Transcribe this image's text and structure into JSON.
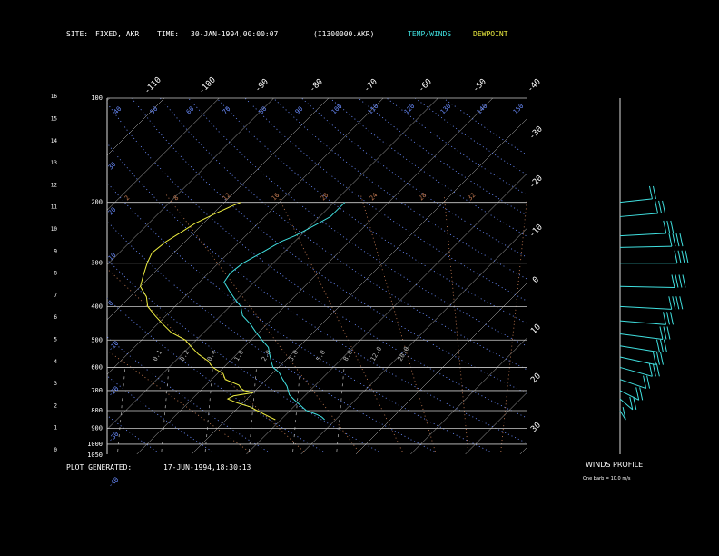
{
  "header": {
    "site_label": "SITE:",
    "site_value": "FIXED, AKR",
    "time_label": "TIME:",
    "time_value": "30-JAN-1994,00:00:07",
    "file": "(I1300000.AKR)",
    "legend_temp": "TEMP/WINDS",
    "legend_dew": "DEWPOINT"
  },
  "footer": {
    "generated_label": "PLOT GENERATED:",
    "generated_value": "17-JUN-1994,18:30:13"
  },
  "wind_panel": {
    "title": "WINDS PROFILE",
    "note": "One barb = 10.0 m/s"
  },
  "colors": {
    "temp": "#40e0e0",
    "dew": "#f0f040",
    "grid": "#cccccc",
    "dry_adiabat": "#6a8cff",
    "moist_adiabat": "#c07850",
    "mixing_ratio": "#bbbbbb",
    "barb": "#40e0e0"
  },
  "chart_data": {
    "type": "line",
    "title": "",
    "pressure_levels": [
      {
        "p": 100,
        "label": "100"
      },
      {
        "p": 200,
        "label": "200"
      },
      {
        "p": 300,
        "label": "300"
      },
      {
        "p": 400,
        "label": "400"
      },
      {
        "p": 500,
        "label": "500"
      },
      {
        "p": 600,
        "label": "600"
      },
      {
        "p": 700,
        "label": "700"
      },
      {
        "p": 800,
        "label": "800"
      },
      {
        "p": 900,
        "label": "900"
      },
      {
        "p": 1000,
        "label": "1000"
      },
      {
        "p": 1050,
        "label": "1050"
      }
    ],
    "height_km_labels": [
      "0",
      "1",
      "2",
      "3",
      "4",
      "5",
      "6",
      "7",
      "8",
      "9",
      "10",
      "11",
      "12",
      "13",
      "14",
      "15",
      "16"
    ],
    "temperature_ticks_top": [
      "-110",
      "-100",
      "-90",
      "-80",
      "-70",
      "-60",
      "-50",
      "-40"
    ],
    "temperature_ticks_right": [
      "-30",
      "-20",
      "-10",
      "0",
      "10",
      "20",
      "30"
    ],
    "isotherm_range_c": [
      -140,
      40
    ],
    "dry_adiabat_labels": [
      "40",
      "50",
      "60",
      "70",
      "80",
      "90",
      "100",
      "110",
      "120",
      "130",
      "140",
      "150"
    ],
    "dry_adiabat_left_labels": [
      "30",
      "20",
      "10",
      "0",
      "-10",
      "-20",
      "-30",
      "-40"
    ],
    "moist_adiabat_labels": [
      "2",
      "8",
      "12",
      "16",
      "20",
      "24",
      "28",
      "32"
    ],
    "mixing_ratio_labels": [
      "0.1",
      "0.2",
      "0.4",
      "1.0",
      "2.0",
      "3.0",
      "5.0",
      "8.0",
      "12.0",
      "20.0"
    ],
    "series": [
      {
        "name": "TEMP/WINDS",
        "points": [
          [
            850,
            -12
          ],
          [
            835,
            -13
          ],
          [
            820,
            -14.5
          ],
          [
            800,
            -17
          ],
          [
            780,
            -18.5
          ],
          [
            760,
            -20
          ],
          [
            740,
            -21.5
          ],
          [
            720,
            -23
          ],
          [
            700,
            -24
          ],
          [
            680,
            -25
          ],
          [
            650,
            -27
          ],
          [
            620,
            -29
          ],
          [
            600,
            -31
          ],
          [
            575,
            -32.5
          ],
          [
            550,
            -34
          ],
          [
            525,
            -35.5
          ],
          [
            500,
            -38
          ],
          [
            475,
            -40.5
          ],
          [
            450,
            -43
          ],
          [
            425,
            -46
          ],
          [
            400,
            -48
          ],
          [
            380,
            -50.5
          ],
          [
            360,
            -53
          ],
          [
            340,
            -55.5
          ],
          [
            320,
            -56
          ],
          [
            300,
            -55.5
          ],
          [
            280,
            -54
          ],
          [
            260,
            -52.5
          ],
          [
            250,
            -51
          ],
          [
            240,
            -50
          ],
          [
            230,
            -49
          ],
          [
            220,
            -48
          ],
          [
            210,
            -48
          ],
          [
            200,
            -48
          ]
        ]
      },
      {
        "name": "DEWPOINT",
        "points": [
          [
            850,
            -21
          ],
          [
            835,
            -22.5
          ],
          [
            820,
            -24
          ],
          [
            800,
            -26
          ],
          [
            780,
            -28
          ],
          [
            760,
            -31
          ],
          [
            740,
            -33.5
          ],
          [
            725,
            -33
          ],
          [
            710,
            -30
          ],
          [
            700,
            -32
          ],
          [
            690,
            -33
          ],
          [
            675,
            -34
          ],
          [
            650,
            -37.5
          ],
          [
            625,
            -39
          ],
          [
            600,
            -42
          ],
          [
            575,
            -44
          ],
          [
            550,
            -47
          ],
          [
            525,
            -49.5
          ],
          [
            500,
            -52
          ],
          [
            475,
            -56
          ],
          [
            450,
            -59
          ],
          [
            425,
            -62
          ],
          [
            400,
            -65
          ],
          [
            375,
            -67
          ],
          [
            350,
            -70
          ],
          [
            325,
            -71.5
          ],
          [
            300,
            -73
          ],
          [
            280,
            -74
          ],
          [
            260,
            -73.5
          ],
          [
            245,
            -72.5
          ],
          [
            230,
            -71.5
          ],
          [
            215,
            -69.5
          ],
          [
            205,
            -68
          ],
          [
            200,
            -67
          ]
        ]
      }
    ],
    "winds": [
      {
        "p": 800,
        "dir_deg": 200,
        "speed_ms": 12
      },
      {
        "p": 740,
        "dir_deg": 215,
        "speed_ms": 16
      },
      {
        "p": 700,
        "dir_deg": 230,
        "speed_ms": 18
      },
      {
        "p": 650,
        "dir_deg": 240,
        "speed_ms": 22
      },
      {
        "p": 600,
        "dir_deg": 245,
        "speed_ms": 26
      },
      {
        "p": 560,
        "dir_deg": 250,
        "speed_ms": 28
      },
      {
        "p": 520,
        "dir_deg": 255,
        "speed_ms": 30
      },
      {
        "p": 480,
        "dir_deg": 258,
        "speed_ms": 32
      },
      {
        "p": 440,
        "dir_deg": 262,
        "speed_ms": 34
      },
      {
        "p": 400,
        "dir_deg": 265,
        "speed_ms": 38
      },
      {
        "p": 350,
        "dir_deg": 268,
        "speed_ms": 40
      },
      {
        "p": 300,
        "dir_deg": 270,
        "speed_ms": 42
      },
      {
        "p": 270,
        "dir_deg": 272,
        "speed_ms": 38
      },
      {
        "p": 250,
        "dir_deg": 275,
        "speed_ms": 34
      },
      {
        "p": 220,
        "dir_deg": 278,
        "speed_ms": 28
      },
      {
        "p": 200,
        "dir_deg": 280,
        "speed_ms": 24
      }
    ]
  }
}
